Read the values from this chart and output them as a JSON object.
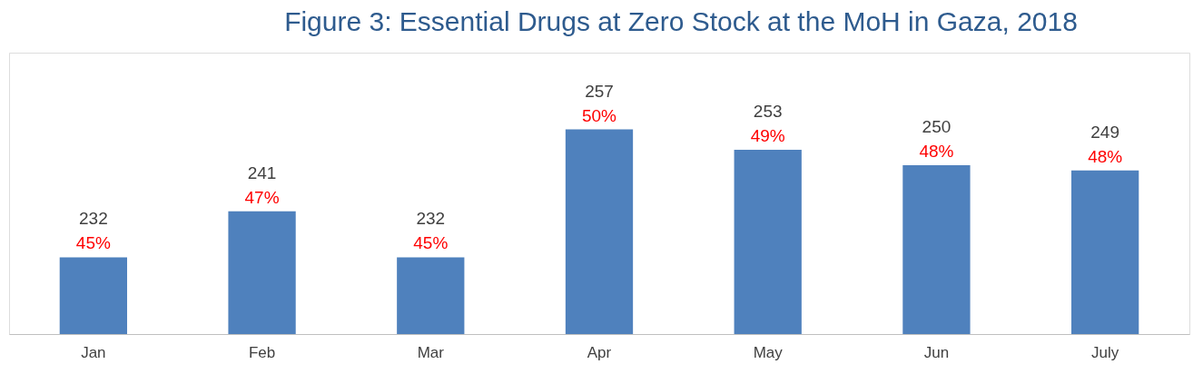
{
  "chart_data": {
    "type": "bar",
    "title": "Figure 3: Essential Drugs at Zero Stock at the MoH in Gaza, 2018",
    "categories": [
      "Jan",
      "Feb",
      "Mar",
      "Apr",
      "May",
      "Jun",
      "July"
    ],
    "values": [
      232,
      241,
      232,
      257,
      253,
      250,
      249
    ],
    "color": "#4f81bd",
    "ylim": [
      217,
      272
    ],
    "tick_labels": "x",
    "grid": false,
    "data_labels": true,
    "annotations": [
      {
        "text": "45%",
        "x": "Jan",
        "y": 232
      },
      {
        "text": "47%",
        "x": "Feb",
        "y": 241
      },
      {
        "text": "45%",
        "x": "Mar",
        "y": 232
      },
      {
        "text": "50%",
        "x": "Apr",
        "y": 257
      },
      {
        "text": "49%",
        "x": "May",
        "y": 253
      },
      {
        "text": "48%",
        "x": "Jun",
        "y": 250
      },
      {
        "text": "48%",
        "x": "July",
        "y": 249
      }
    ]
  }
}
